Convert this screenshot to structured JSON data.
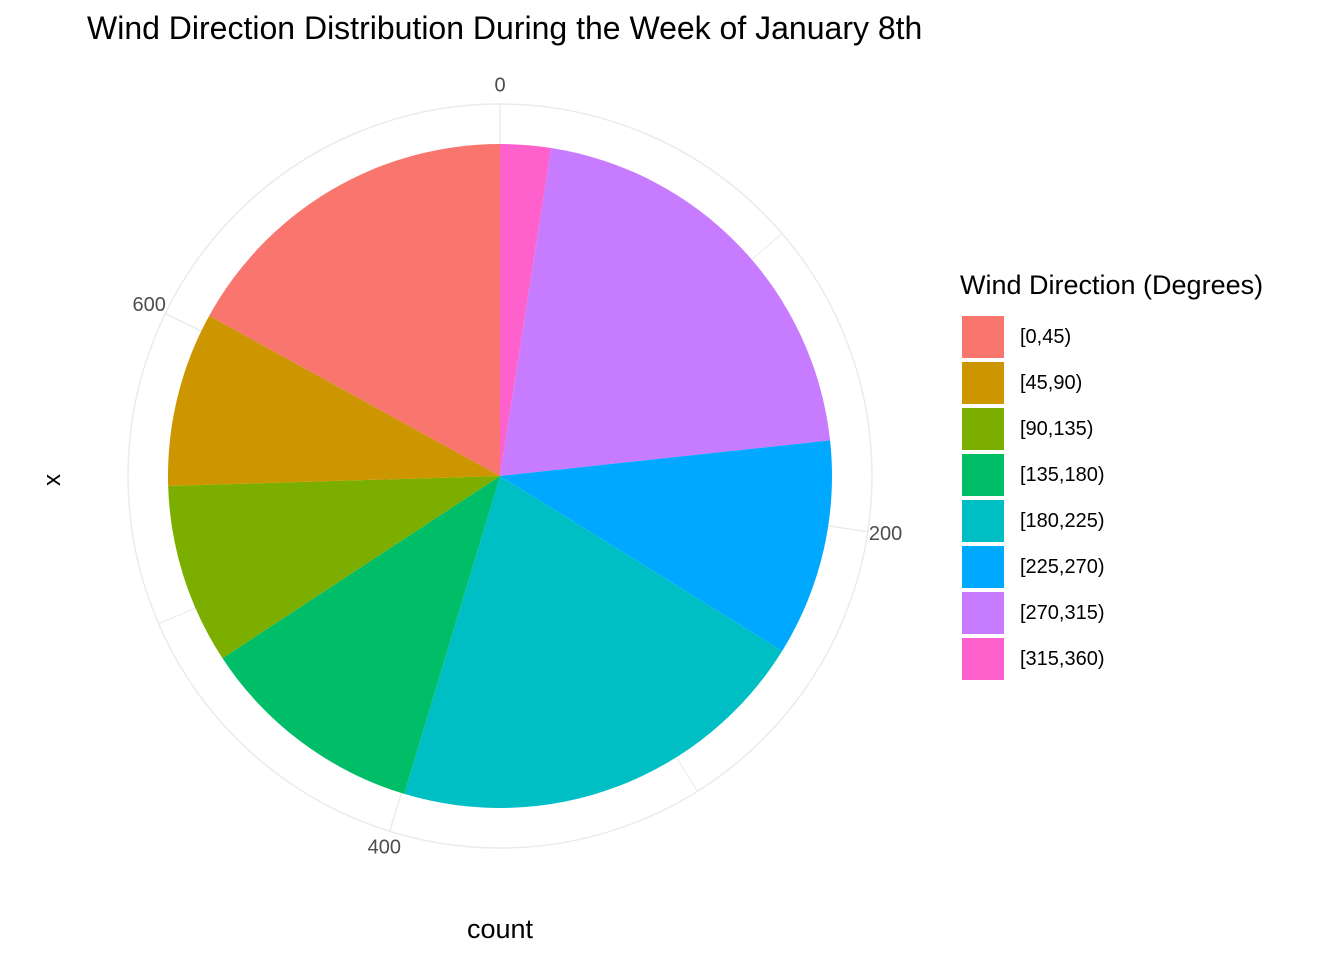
{
  "chart_data": {
    "type": "pie",
    "title": "Wind Direction Distribution During the Week of January 8th",
    "xlabel": "count",
    "ylabel": "x",
    "legend_title": "Wind Direction (Degrees)",
    "legend_position": "right",
    "grid": true,
    "total": 730,
    "axis_ticks": [
      "0",
      "200",
      "400",
      "600"
    ],
    "categories": [
      "[0,45)",
      "[45,90)",
      "[90,135)",
      "[135,180)",
      "[180,225)",
      "[225,270)",
      "[270,315)",
      "[315,360)"
    ],
    "values": [
      124,
      62,
      64,
      81,
      152,
      77,
      152,
      18
    ],
    "colors": [
      "#F8766D",
      "#CD9600",
      "#7CAE00",
      "#00BE67",
      "#00BFC4",
      "#00A9FF",
      "#C77CFF",
      "#FF61CC"
    ]
  }
}
